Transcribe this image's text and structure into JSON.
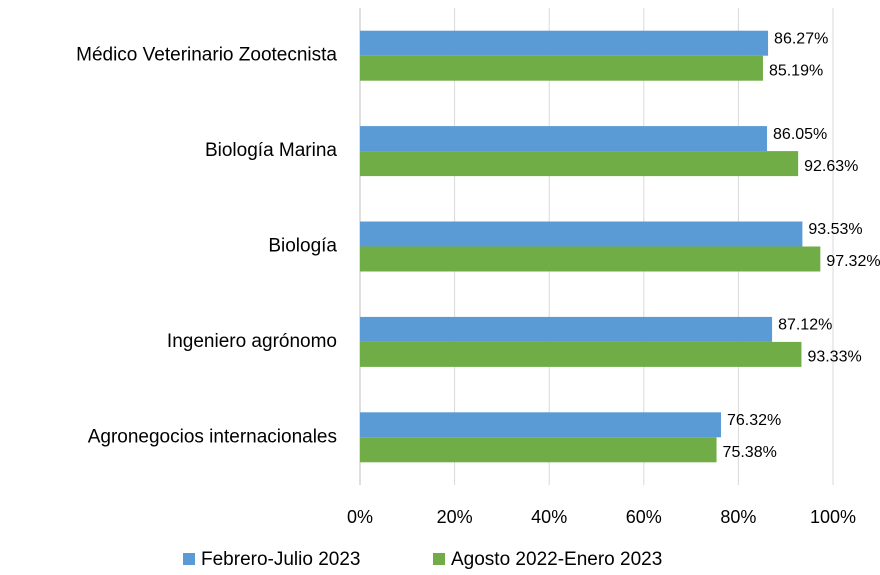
{
  "chart_data": {
    "type": "hbar",
    "categories": [
      "Médico Veterinario Zootecnista",
      "Biología Marina",
      "Biología",
      "Ingeniero agrónomo",
      "Agronegocios internacionales"
    ],
    "series": [
      {
        "name": "Febrero-Julio 2023",
        "color": "#5b9bd5",
        "values": [
          86.27,
          86.05,
          93.53,
          87.12,
          76.32
        ],
        "value_labels": [
          "86.27%",
          "86.05%",
          "93.53%",
          "87.12%",
          "76.32%"
        ]
      },
      {
        "name": "Agosto 2022-Enero 2023",
        "color": "#70ad47",
        "values": [
          85.19,
          92.63,
          97.32,
          93.33,
          75.38
        ],
        "value_labels": [
          "85.19%",
          "92.63%",
          "97.32%",
          "93.33%",
          "75.38%"
        ]
      }
    ],
    "xlim": [
      0,
      100
    ],
    "xticks": [
      {
        "value": 0,
        "label": "0%"
      },
      {
        "value": 20,
        "label": "20%"
      },
      {
        "value": 40,
        "label": "40%"
      },
      {
        "value": 60,
        "label": "60%"
      },
      {
        "value": 80,
        "label": "80%"
      },
      {
        "value": 100,
        "label": "100%"
      }
    ],
    "grid": true,
    "legend": "bottom"
  }
}
